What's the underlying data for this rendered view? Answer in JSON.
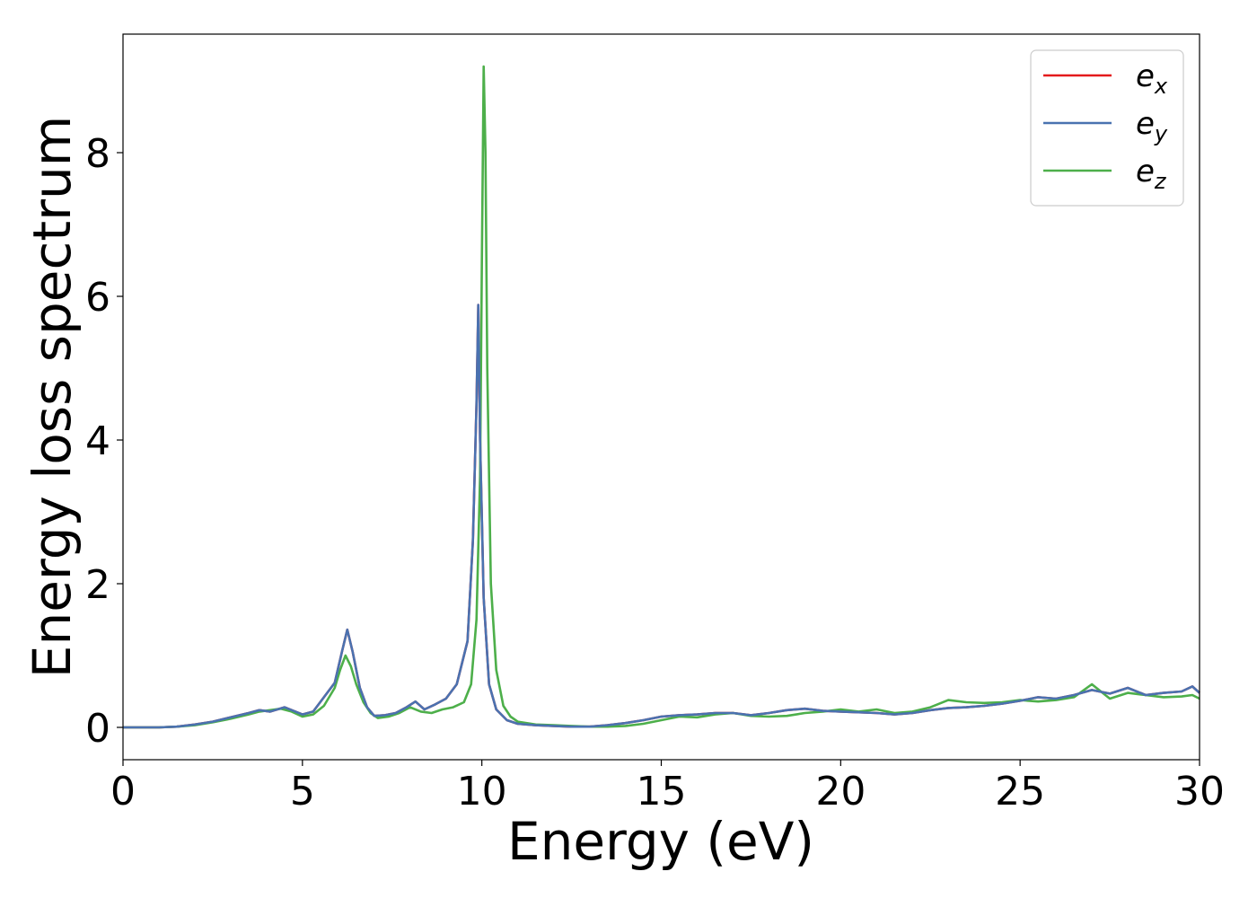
{
  "chart_data": {
    "type": "line",
    "title": "",
    "xlabel": "Energy (eV)",
    "ylabel": "Energy loss spectrum",
    "xlim": [
      0,
      30
    ],
    "ylim": [
      -0.45,
      9.65
    ],
    "xticks": [
      0,
      5,
      10,
      15,
      20,
      25,
      30
    ],
    "xtick_labels": [
      "0",
      "5",
      "10",
      "15",
      "20",
      "25",
      "30"
    ],
    "yticks": [
      0,
      2,
      4,
      6,
      8
    ],
    "ytick_labels": [
      "0",
      "2",
      "4",
      "6",
      "8"
    ],
    "grid": false,
    "legend_position": "top-right",
    "series": [
      {
        "name": "e_x",
        "label_base": "e",
        "label_sub": "x",
        "color": "#e41a1c",
        "x": [
          0,
          1,
          1.5,
          2,
          2.5,
          3,
          3.5,
          3.8,
          4.1,
          4.5,
          5,
          5.3,
          5.6,
          5.9,
          6.1,
          6.25,
          6.4,
          6.6,
          6.8,
          7.0,
          7.3,
          7.6,
          7.9,
          8.15,
          8.4,
          8.7,
          9.0,
          9.3,
          9.6,
          9.75,
          9.85,
          9.9,
          9.95,
          10.05,
          10.2,
          10.4,
          10.7,
          11,
          11.5,
          12,
          12.5,
          13,
          13.5,
          14,
          14.5,
          15,
          15.5,
          16,
          16.5,
          17,
          17.5,
          18,
          18.5,
          19,
          19.5,
          20,
          20.5,
          21,
          21.5,
          22,
          22.5,
          23,
          23.5,
          24,
          24.5,
          25,
          25.5,
          26,
          26.5,
          27,
          27.5,
          28,
          28.5,
          29,
          29.5,
          29.8,
          30
        ],
        "y": [
          0,
          0,
          0.01,
          0.04,
          0.08,
          0.14,
          0.2,
          0.24,
          0.22,
          0.28,
          0.18,
          0.22,
          0.42,
          0.62,
          1.05,
          1.36,
          1.05,
          0.55,
          0.28,
          0.16,
          0.17,
          0.2,
          0.28,
          0.36,
          0.25,
          0.32,
          0.4,
          0.6,
          1.2,
          2.6,
          4.5,
          5.88,
          4.0,
          1.8,
          0.6,
          0.25,
          0.1,
          0.05,
          0.03,
          0.02,
          0.01,
          0.01,
          0.03,
          0.06,
          0.1,
          0.15,
          0.17,
          0.18,
          0.2,
          0.2,
          0.17,
          0.2,
          0.24,
          0.26,
          0.23,
          0.22,
          0.21,
          0.2,
          0.18,
          0.2,
          0.24,
          0.27,
          0.28,
          0.3,
          0.33,
          0.37,
          0.42,
          0.4,
          0.45,
          0.52,
          0.47,
          0.55,
          0.45,
          0.48,
          0.5,
          0.57,
          0.48
        ]
      },
      {
        "name": "e_y",
        "label_base": "e",
        "label_sub": "y",
        "color": "#4a72b0",
        "x": [
          0,
          1,
          1.5,
          2,
          2.5,
          3,
          3.5,
          3.8,
          4.1,
          4.5,
          5,
          5.3,
          5.6,
          5.9,
          6.1,
          6.25,
          6.4,
          6.6,
          6.8,
          7.0,
          7.3,
          7.6,
          7.9,
          8.15,
          8.4,
          8.7,
          9.0,
          9.3,
          9.6,
          9.75,
          9.85,
          9.9,
          9.95,
          10.05,
          10.2,
          10.4,
          10.7,
          11,
          11.5,
          12,
          12.5,
          13,
          13.5,
          14,
          14.5,
          15,
          15.5,
          16,
          16.5,
          17,
          17.5,
          18,
          18.5,
          19,
          19.5,
          20,
          20.5,
          21,
          21.5,
          22,
          22.5,
          23,
          23.5,
          24,
          24.5,
          25,
          25.5,
          26,
          26.5,
          27,
          27.5,
          28,
          28.5,
          29,
          29.5,
          29.8,
          30
        ],
        "y": [
          0,
          0,
          0.01,
          0.04,
          0.08,
          0.14,
          0.2,
          0.24,
          0.22,
          0.28,
          0.18,
          0.22,
          0.42,
          0.62,
          1.05,
          1.36,
          1.05,
          0.55,
          0.28,
          0.16,
          0.17,
          0.2,
          0.28,
          0.36,
          0.25,
          0.32,
          0.4,
          0.6,
          1.2,
          2.6,
          4.5,
          5.88,
          4.0,
          1.8,
          0.6,
          0.25,
          0.1,
          0.05,
          0.03,
          0.02,
          0.01,
          0.01,
          0.03,
          0.06,
          0.1,
          0.15,
          0.17,
          0.18,
          0.2,
          0.2,
          0.17,
          0.2,
          0.24,
          0.26,
          0.23,
          0.22,
          0.21,
          0.2,
          0.18,
          0.2,
          0.24,
          0.27,
          0.28,
          0.3,
          0.33,
          0.37,
          0.42,
          0.4,
          0.45,
          0.52,
          0.47,
          0.55,
          0.45,
          0.48,
          0.5,
          0.57,
          0.48
        ]
      },
      {
        "name": "e_z",
        "label_base": "e",
        "label_sub": "z",
        "color": "#4daf4a",
        "x": [
          0,
          1,
          1.5,
          2,
          2.5,
          3,
          3.5,
          3.8,
          4.1,
          4.4,
          4.7,
          5,
          5.3,
          5.6,
          5.9,
          6.05,
          6.2,
          6.35,
          6.5,
          6.7,
          6.9,
          7.1,
          7.4,
          7.7,
          8.0,
          8.3,
          8.6,
          8.9,
          9.2,
          9.5,
          9.7,
          9.85,
          9.95,
          10.0,
          10.05,
          10.1,
          10.15,
          10.25,
          10.4,
          10.6,
          10.8,
          11,
          11.5,
          12,
          12.5,
          13,
          13.5,
          14,
          14.5,
          15,
          15.5,
          16,
          16.5,
          17,
          17.5,
          18,
          18.5,
          19,
          19.5,
          20,
          20.5,
          21,
          21.5,
          22,
          22.5,
          23,
          23.5,
          24,
          24.5,
          25,
          25.5,
          26,
          26.5,
          27,
          27.5,
          28,
          28.5,
          29,
          29.5,
          29.8,
          30
        ],
        "y": [
          0,
          0,
          0.01,
          0.03,
          0.07,
          0.12,
          0.18,
          0.22,
          0.24,
          0.26,
          0.22,
          0.15,
          0.18,
          0.3,
          0.55,
          0.8,
          1.0,
          0.85,
          0.6,
          0.35,
          0.2,
          0.13,
          0.15,
          0.2,
          0.28,
          0.22,
          0.2,
          0.25,
          0.28,
          0.35,
          0.6,
          1.5,
          3.5,
          6.5,
          9.2,
          8.0,
          5.0,
          2.0,
          0.8,
          0.3,
          0.15,
          0.08,
          0.04,
          0.03,
          0.02,
          0.01,
          0.01,
          0.02,
          0.05,
          0.1,
          0.15,
          0.14,
          0.18,
          0.2,
          0.16,
          0.15,
          0.16,
          0.2,
          0.22,
          0.25,
          0.22,
          0.25,
          0.2,
          0.22,
          0.28,
          0.38,
          0.35,
          0.34,
          0.35,
          0.38,
          0.36,
          0.38,
          0.42,
          0.6,
          0.4,
          0.48,
          0.45,
          0.42,
          0.43,
          0.45,
          0.4
        ]
      }
    ]
  }
}
